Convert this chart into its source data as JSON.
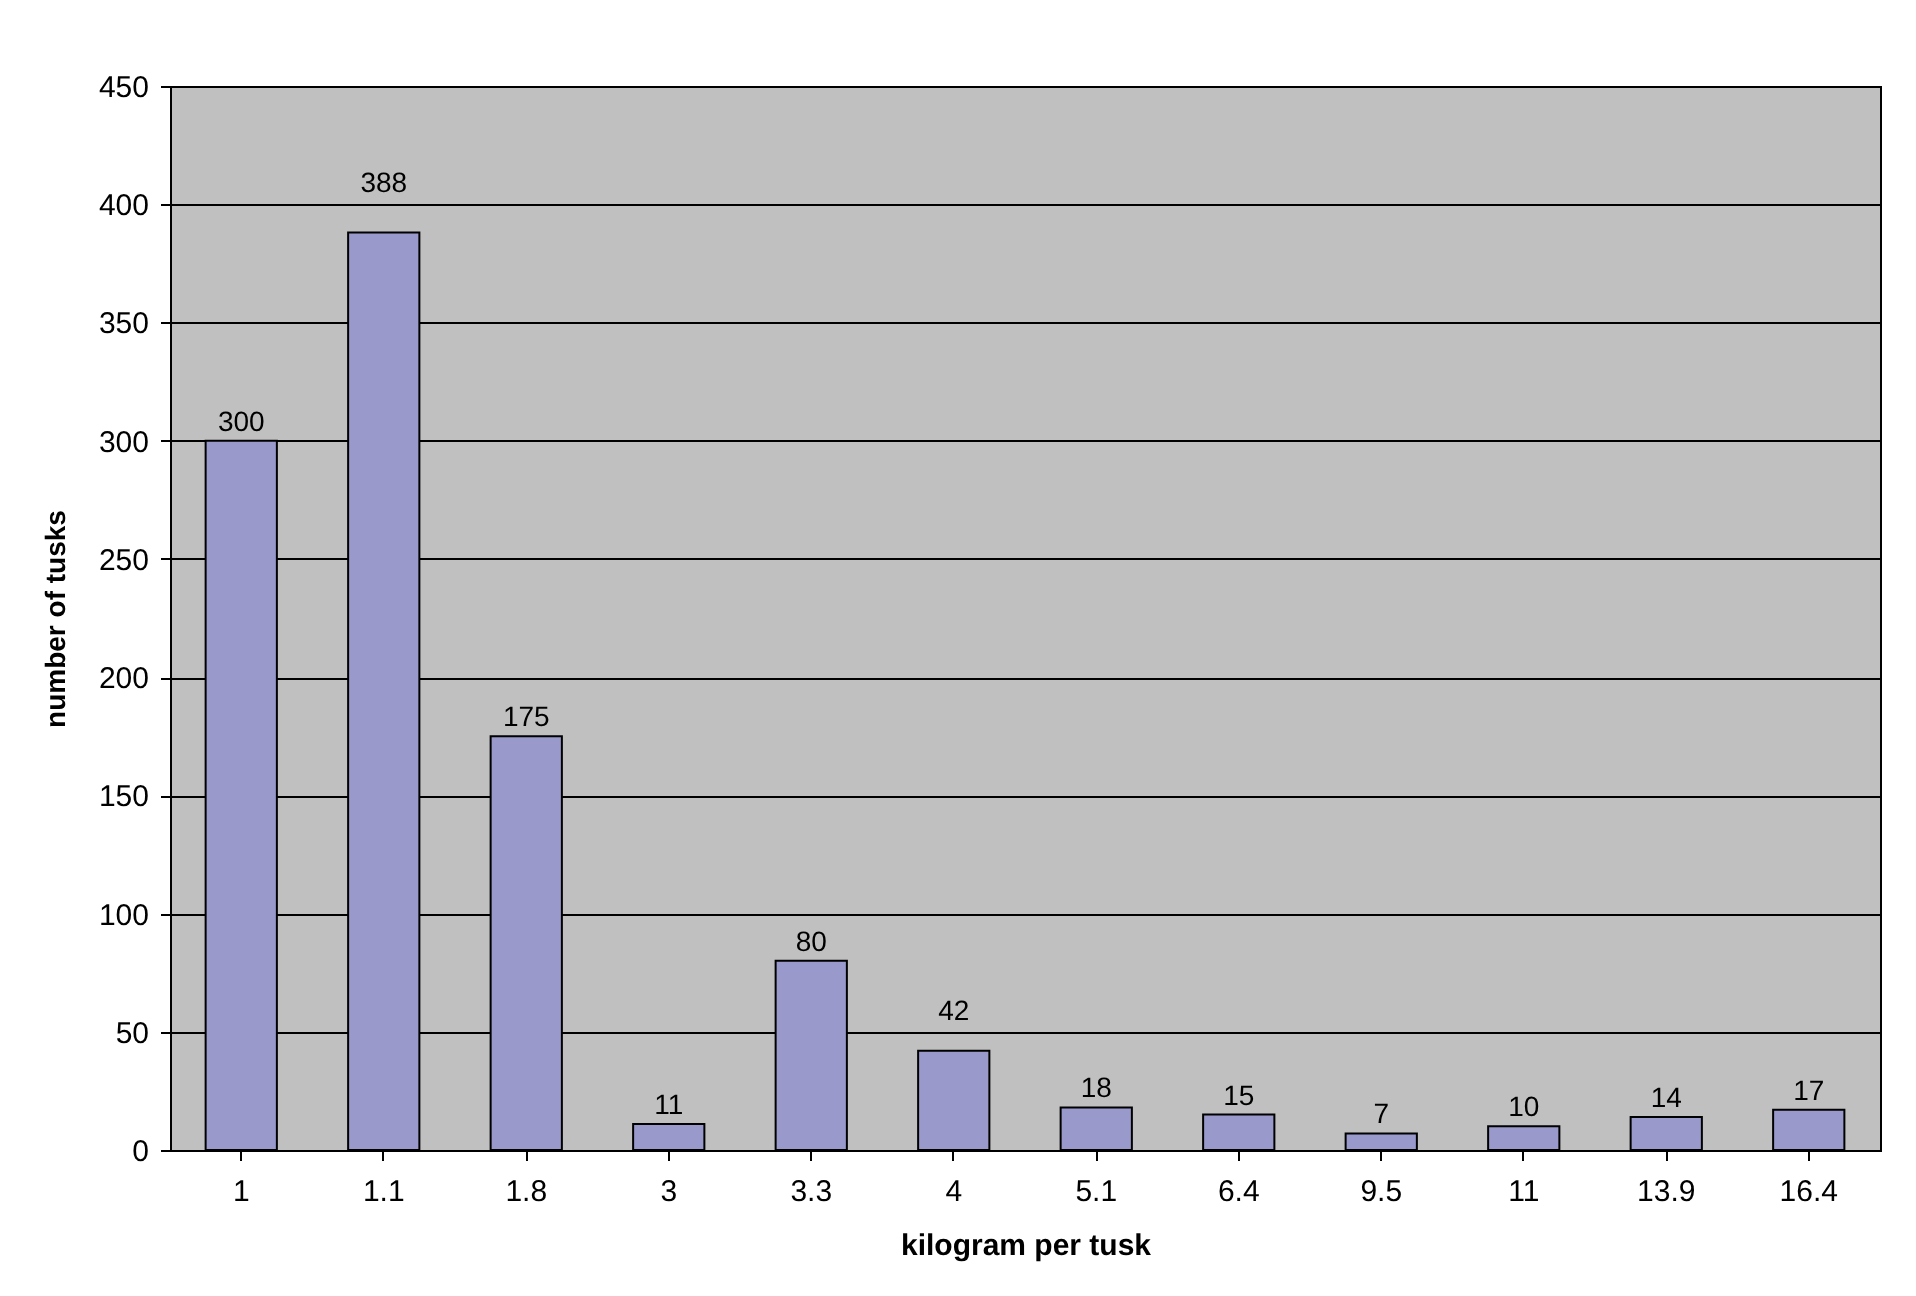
{
  "chart_data": {
    "type": "bar",
    "xlabel": "kilogram per tusk",
    "ylabel": "number of tusks",
    "categories": [
      "1",
      "1.1",
      "1.8",
      "3",
      "3.3",
      "4",
      "5.1",
      "6.4",
      "9.5",
      "11",
      "13.9",
      "16.4"
    ],
    "values": [
      300,
      388,
      175,
      11,
      80,
      42,
      18,
      15,
      7,
      10,
      14,
      17
    ],
    "color": "#9999cc",
    "ylim": [
      0,
      450
    ],
    "yticks": [
      0,
      50,
      100,
      150,
      200,
      250,
      300,
      350,
      400,
      450
    ],
    "grid": "y",
    "data_labels": true
  }
}
